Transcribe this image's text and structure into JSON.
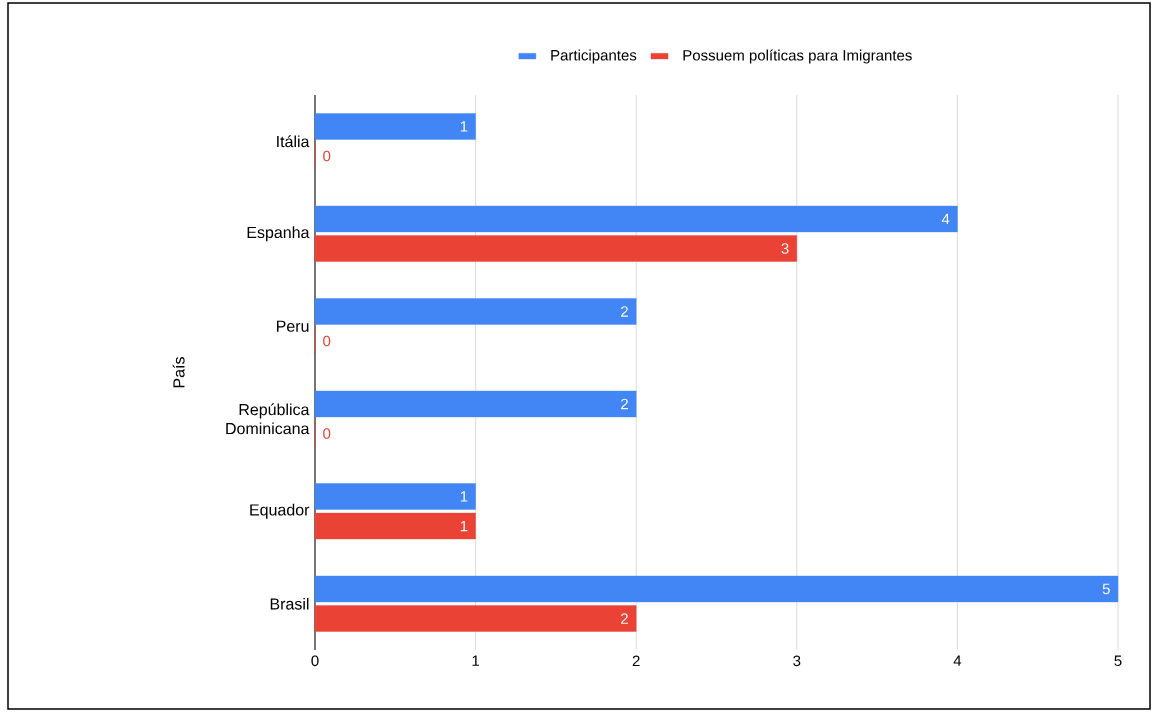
{
  "chart_data": {
    "type": "bar",
    "orientation": "horizontal",
    "ylabel": "País",
    "categories": [
      "Itália",
      "Espanha",
      "Peru",
      "República Dominicana",
      "Equador",
      "Brasil"
    ],
    "series": [
      {
        "name": "Participantes",
        "color": "#4285f4",
        "values": [
          1,
          4,
          2,
          2,
          1,
          5
        ]
      },
      {
        "name": "Possuem políticas para Imigrantes",
        "color": "#ea4335",
        "values": [
          0,
          3,
          0,
          0,
          1,
          2
        ]
      }
    ],
    "xlim": [
      0,
      5
    ],
    "xticks": [
      0,
      1,
      2,
      3,
      4,
      5
    ],
    "grid": "x",
    "legend": "top",
    "data_labels": true
  }
}
